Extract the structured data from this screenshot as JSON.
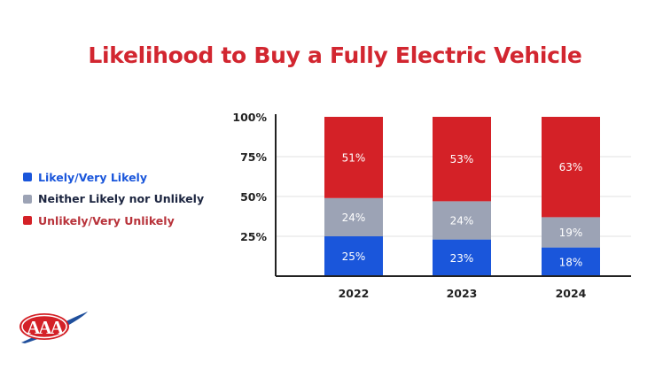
{
  "chart_data": {
    "type": "bar",
    "stacked": true,
    "title": "Likelihood to Buy a Fully Electric Vehicle",
    "categories": [
      "2022",
      "2023",
      "2024"
    ],
    "series": [
      {
        "name": "Likely/Very Likely",
        "values": [
          25,
          23,
          18
        ],
        "color": "#1a56db",
        "label_color": "#1a56db"
      },
      {
        "name": "Neither Likely nor Unlikely",
        "values": [
          24,
          24,
          19
        ],
        "color": "#9ca3b5",
        "label_color": "#1c2540"
      },
      {
        "name": "Unlikely/Very Unlikely",
        "values": [
          51,
          53,
          63
        ],
        "color": "#d42127",
        "label_color": "#b8323a"
      }
    ],
    "ylim": [
      0,
      100
    ],
    "yticks": [
      "25%",
      "50%",
      "75%",
      "100%"
    ],
    "ytick_values": [
      25,
      50,
      75,
      100
    ],
    "grid": true,
    "legend_placement": "left",
    "value_format": "{v}%"
  },
  "logo": {
    "text": "AAA"
  }
}
